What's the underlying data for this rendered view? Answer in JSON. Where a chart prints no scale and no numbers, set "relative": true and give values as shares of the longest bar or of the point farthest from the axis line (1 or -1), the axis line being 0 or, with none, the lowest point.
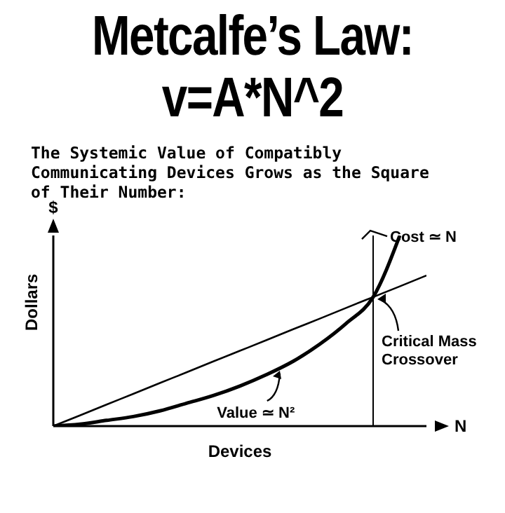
{
  "chart_data": {
    "type": "line",
    "title": "Metcalfe’s Law:\nv=A*N^2",
    "subtitle": "The Systemic Value of Compatibly Communicating Devices Grows as the Square of Their Number:",
    "xlabel": "Devices",
    "ylabel": "Dollars",
    "relative": true,
    "categories": [
      null,
      null,
      null,
      null,
      null,
      null,
      null,
      null,
      null,
      null,
      null,
      null,
      null,
      null,
      null
    ],
    "series": [
      {
        "name": "Value ≃ N²",
        "color": "#000000",
        "values": [
          0,
          0.01,
          0.03,
          0.05,
          0.08,
          0.12,
          0.16,
          0.21,
          0.27,
          0.34,
          0.43,
          0.54,
          0.677,
          1.0,
          null
        ]
      },
      {
        "name": "Cost ≃ N",
        "color": "#000000",
        "values": [
          0,
          0.056,
          0.113,
          0.169,
          0.226,
          0.282,
          0.339,
          0.395,
          0.451,
          0.508,
          0.564,
          0.621,
          0.677,
          0.733,
          0.79
        ]
      }
    ],
    "annotations": [
      "$",
      "N",
      "Critical Mass\nCrossover"
    ],
    "marker": "none",
    "line_style": "solid"
  }
}
